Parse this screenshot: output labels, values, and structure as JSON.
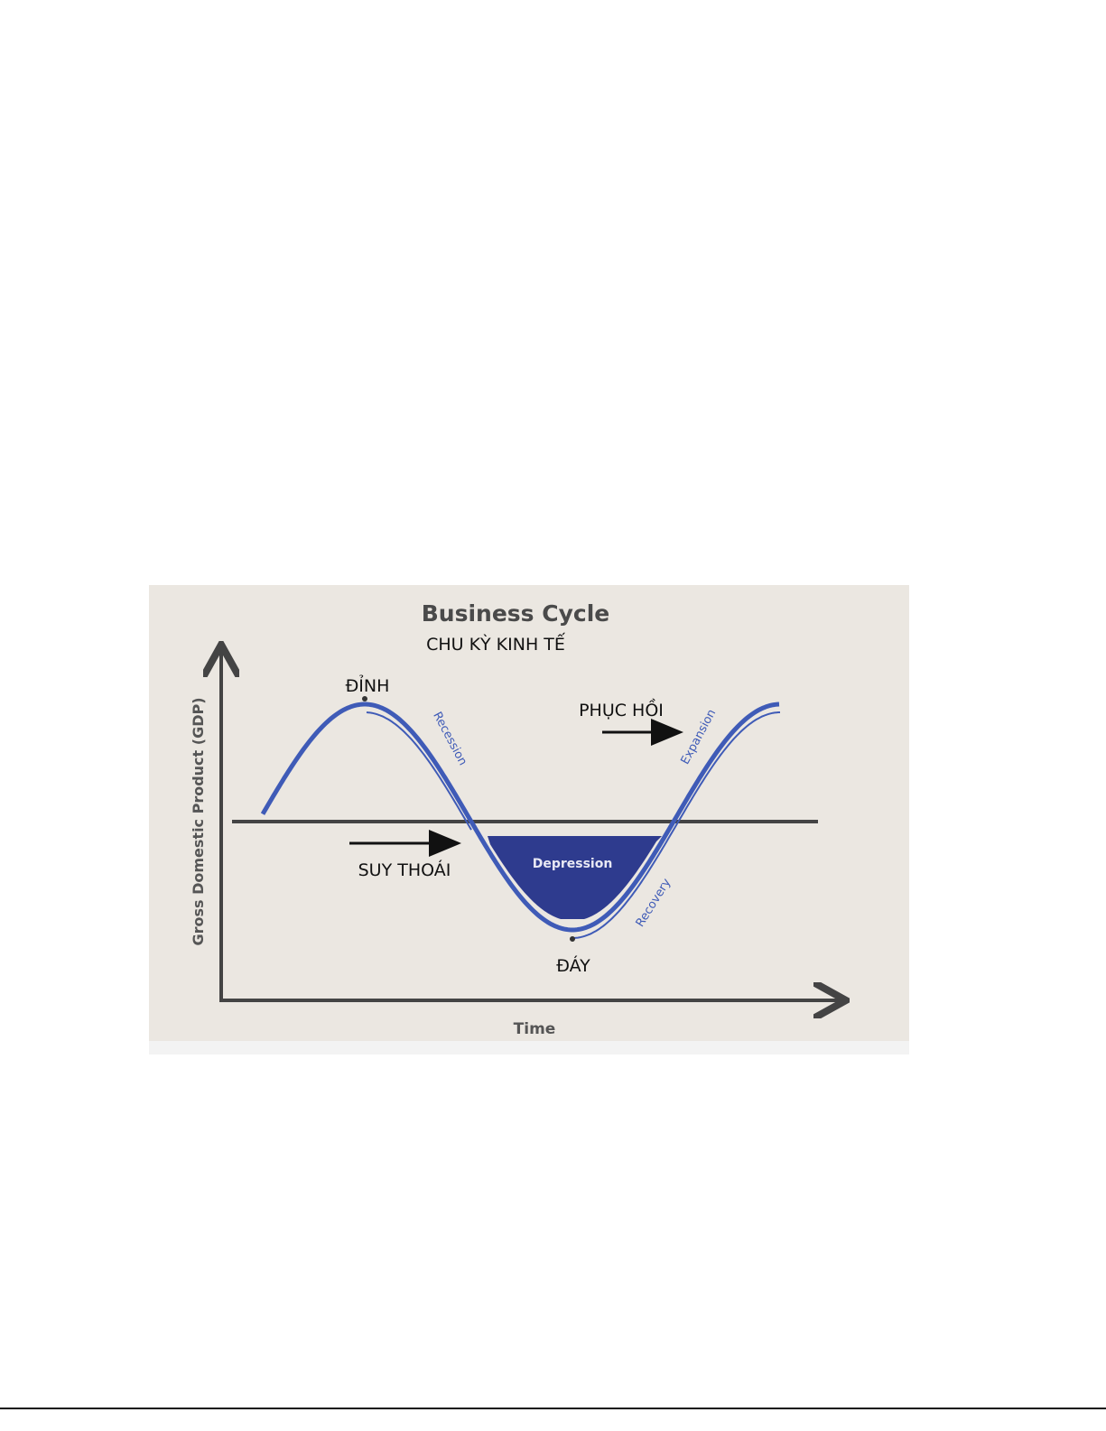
{
  "figure": {
    "title": "Business Cycle",
    "subtitle": "CHU KỲ KINH TẾ",
    "y_axis_label": "Gross Domestic Product (GDP)",
    "x_axis_label": "Time",
    "labels": {
      "peak": "ĐỈNH",
      "trough": "ĐÁY",
      "downturn": "SUY THOÁI",
      "recovery_vn": "PHỤC HỒI",
      "recession": "Recession",
      "expansion": "Expansion",
      "recovery": "Recovery",
      "depression": "Depression"
    },
    "colors": {
      "curve": "#3f5bb7",
      "depression_fill": "#2e3b8e",
      "axis": "#444444",
      "background": "#ebe7e1"
    }
  }
}
